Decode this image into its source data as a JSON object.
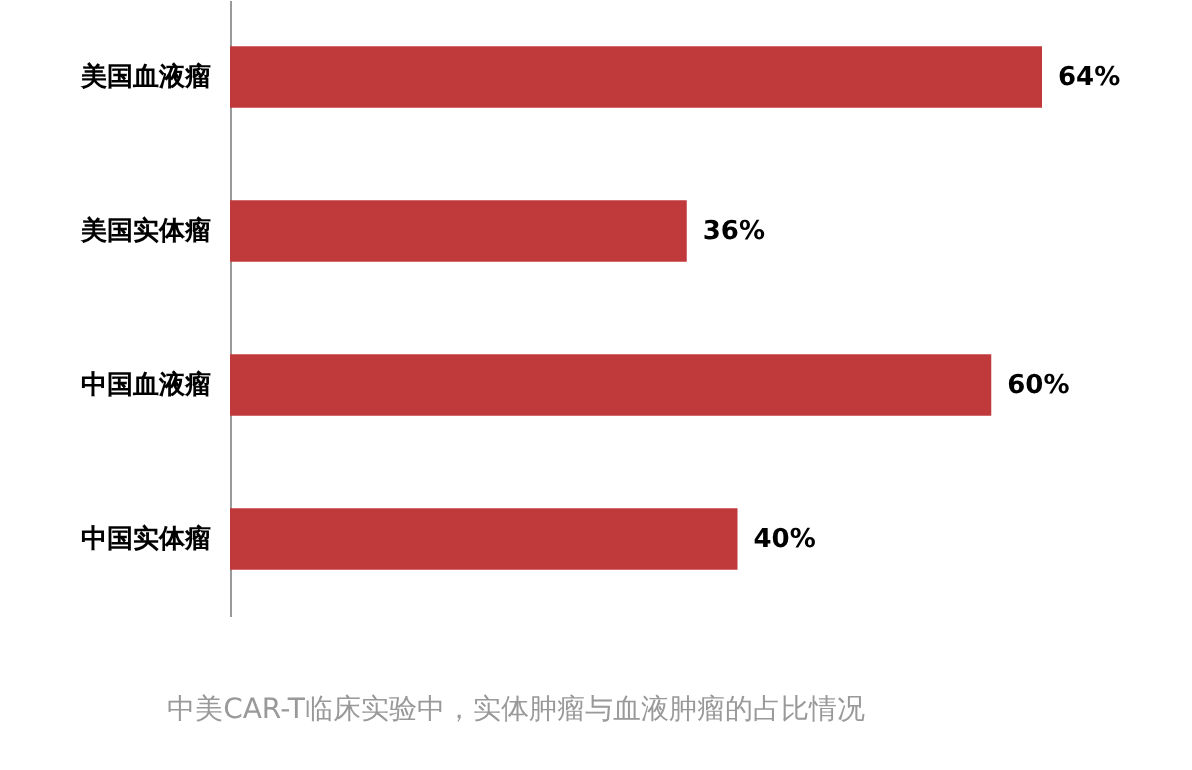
{
  "chart_data": {
    "type": "bar",
    "orientation": "horizontal",
    "categories": [
      "美国血液瘤",
      "美国实体瘤",
      "中国血液瘤",
      "中国实体瘤"
    ],
    "values": [
      64,
      36,
      60,
      40
    ],
    "value_labels": [
      "64%",
      "36%",
      "60%",
      "40%"
    ],
    "color": "#c0393b",
    "annotations": [
      "中美CAR-T临床实验中，实体肿瘤与血液肿瘤的占比情况"
    ]
  }
}
